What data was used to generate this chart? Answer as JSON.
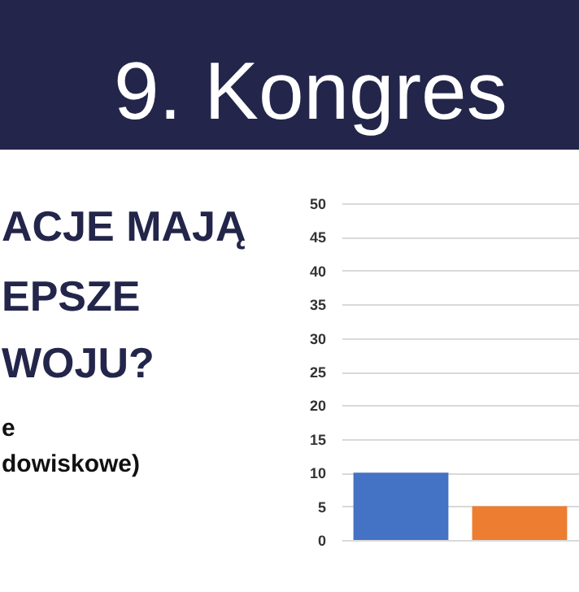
{
  "chart_data": {
    "type": "bar",
    "title": "9. Kongres",
    "annotations": [
      "ACJE MAJĄ",
      "EPSZE",
      "WOJU?",
      "e",
      "dowiskowe)"
    ],
    "categories": [
      null,
      null
    ],
    "colors": [
      "#4472c4",
      "#ed7d31"
    ],
    "values": [
      10,
      5
    ],
    "ylim": [
      0,
      50
    ],
    "yticks": [
      0,
      5,
      10,
      15,
      20,
      25,
      30,
      35,
      40,
      45,
      50
    ],
    "grid": "y"
  }
}
